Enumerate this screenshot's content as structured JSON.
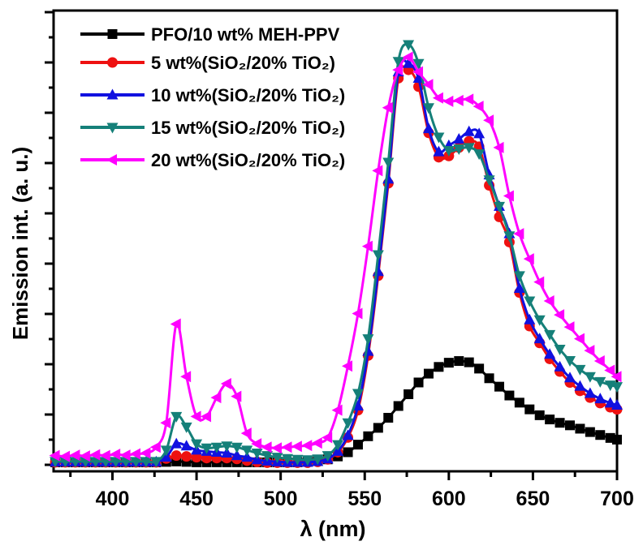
{
  "figure": {
    "background": "#ffffff",
    "frame_color": "#000000"
  },
  "chart_data": {
    "type": "line",
    "title": "",
    "xlabel": "λ (nm)",
    "ylabel": "Emission int. (a. u.)",
    "xlim": [
      365,
      700
    ],
    "ylim": [
      0,
      1.1
    ],
    "y_units": "arbitrary units (values normalized, max peak = 1.0)",
    "grid": false,
    "legend_position": "top-left-inside",
    "x_major_ticks": [
      400,
      450,
      500,
      550,
      600,
      650,
      700
    ],
    "x_minor_ticks": [
      375,
      425,
      475,
      525,
      575,
      625,
      675
    ],
    "y_major_tick_count": 10,
    "y_tick_labels": [],
    "x": [
      366,
      372,
      378,
      384,
      390,
      396,
      402,
      408,
      414,
      420,
      426,
      432,
      438,
      444,
      450,
      456,
      462,
      468,
      474,
      480,
      486,
      492,
      498,
      504,
      510,
      516,
      522,
      528,
      534,
      540,
      546,
      552,
      558,
      564,
      570,
      576,
      582,
      588,
      594,
      600,
      606,
      612,
      618,
      624,
      630,
      636,
      642,
      648,
      654,
      660,
      666,
      672,
      678,
      684,
      690,
      696,
      700
    ],
    "series": [
      {
        "name": "PFO/10 wt% MEH-PPV",
        "color": "#000000",
        "marker": "square",
        "values": [
          0.006,
          0.006,
          0.006,
          0.006,
          0.006,
          0.006,
          0.006,
          0.006,
          0.006,
          0.006,
          0.006,
          0.007,
          0.008,
          0.007,
          0.006,
          0.006,
          0.006,
          0.006,
          0.006,
          0.006,
          0.006,
          0.006,
          0.006,
          0.006,
          0.006,
          0.007,
          0.009,
          0.013,
          0.02,
          0.03,
          0.048,
          0.068,
          0.088,
          0.112,
          0.14,
          0.168,
          0.196,
          0.217,
          0.233,
          0.243,
          0.247,
          0.244,
          0.229,
          0.206,
          0.186,
          0.165,
          0.148,
          0.132,
          0.118,
          0.108,
          0.1,
          0.094,
          0.086,
          0.078,
          0.071,
          0.064,
          0.06
        ]
      },
      {
        "name": "5 wt%(SiO₂/20% TiO₂)",
        "color": "#ee1111",
        "marker": "circle",
        "values": [
          0.006,
          0.006,
          0.006,
          0.006,
          0.006,
          0.006,
          0.006,
          0.006,
          0.006,
          0.006,
          0.006,
          0.015,
          0.022,
          0.02,
          0.018,
          0.016,
          0.016,
          0.016,
          0.014,
          0.01,
          0.007,
          0.005,
          0.005,
          0.005,
          0.005,
          0.005,
          0.007,
          0.013,
          0.03,
          0.065,
          0.13,
          0.26,
          0.45,
          0.67,
          0.92,
          0.94,
          0.9,
          0.79,
          0.732,
          0.735,
          0.755,
          0.77,
          0.757,
          0.665,
          0.59,
          0.53,
          0.41,
          0.33,
          0.29,
          0.252,
          0.222,
          0.196,
          0.176,
          0.16,
          0.147,
          0.137,
          0.132
        ]
      },
      {
        "name": "10 wt%(SiO₂/20% TiO₂)",
        "color": "#1111e0",
        "marker": "triangle-up",
        "values": [
          0.007,
          0.007,
          0.007,
          0.007,
          0.007,
          0.007,
          0.007,
          0.007,
          0.007,
          0.007,
          0.007,
          0.018,
          0.05,
          0.045,
          0.035,
          0.032,
          0.03,
          0.028,
          0.022,
          0.018,
          0.012,
          0.009,
          0.007,
          0.006,
          0.006,
          0.006,
          0.008,
          0.014,
          0.032,
          0.07,
          0.14,
          0.27,
          0.46,
          0.68,
          0.935,
          0.955,
          0.92,
          0.8,
          0.745,
          0.76,
          0.775,
          0.793,
          0.788,
          0.69,
          0.615,
          0.55,
          0.42,
          0.345,
          0.3,
          0.263,
          0.233,
          0.207,
          0.187,
          0.17,
          0.157,
          0.147,
          0.142
        ]
      },
      {
        "name": "15 wt%(SiO₂/20% TiO₂)",
        "color": "#158079",
        "marker": "triangle-down",
        "values": [
          0.008,
          0.008,
          0.008,
          0.008,
          0.008,
          0.008,
          0.008,
          0.008,
          0.008,
          0.008,
          0.008,
          0.035,
          0.115,
          0.09,
          0.05,
          0.04,
          0.042,
          0.045,
          0.042,
          0.035,
          0.028,
          0.022,
          0.018,
          0.015,
          0.013,
          0.012,
          0.014,
          0.022,
          0.048,
          0.1,
          0.17,
          0.3,
          0.5,
          0.72,
          0.96,
          1.0,
          0.955,
          0.85,
          0.78,
          0.748,
          0.752,
          0.755,
          0.74,
          0.678,
          0.615,
          0.545,
          0.45,
          0.39,
          0.345,
          0.31,
          0.275,
          0.248,
          0.227,
          0.21,
          0.198,
          0.19,
          0.186
        ]
      },
      {
        "name": "20 wt%(SiO₂/20% TiO₂)",
        "color": "#ff00ff",
        "marker": "triangle-left",
        "values": [
          0.022,
          0.02,
          0.023,
          0.021,
          0.024,
          0.022,
          0.025,
          0.023,
          0.026,
          0.028,
          0.042,
          0.1,
          0.335,
          0.21,
          0.115,
          0.115,
          0.16,
          0.193,
          0.163,
          0.075,
          0.05,
          0.042,
          0.04,
          0.042,
          0.044,
          0.046,
          0.052,
          0.065,
          0.13,
          0.235,
          0.36,
          0.52,
          0.7,
          0.85,
          0.94,
          0.97,
          0.935,
          0.905,
          0.873,
          0.865,
          0.867,
          0.87,
          0.853,
          0.82,
          0.755,
          0.64,
          0.55,
          0.49,
          0.435,
          0.39,
          0.357,
          0.328,
          0.3,
          0.272,
          0.247,
          0.225,
          0.21
        ]
      }
    ]
  }
}
